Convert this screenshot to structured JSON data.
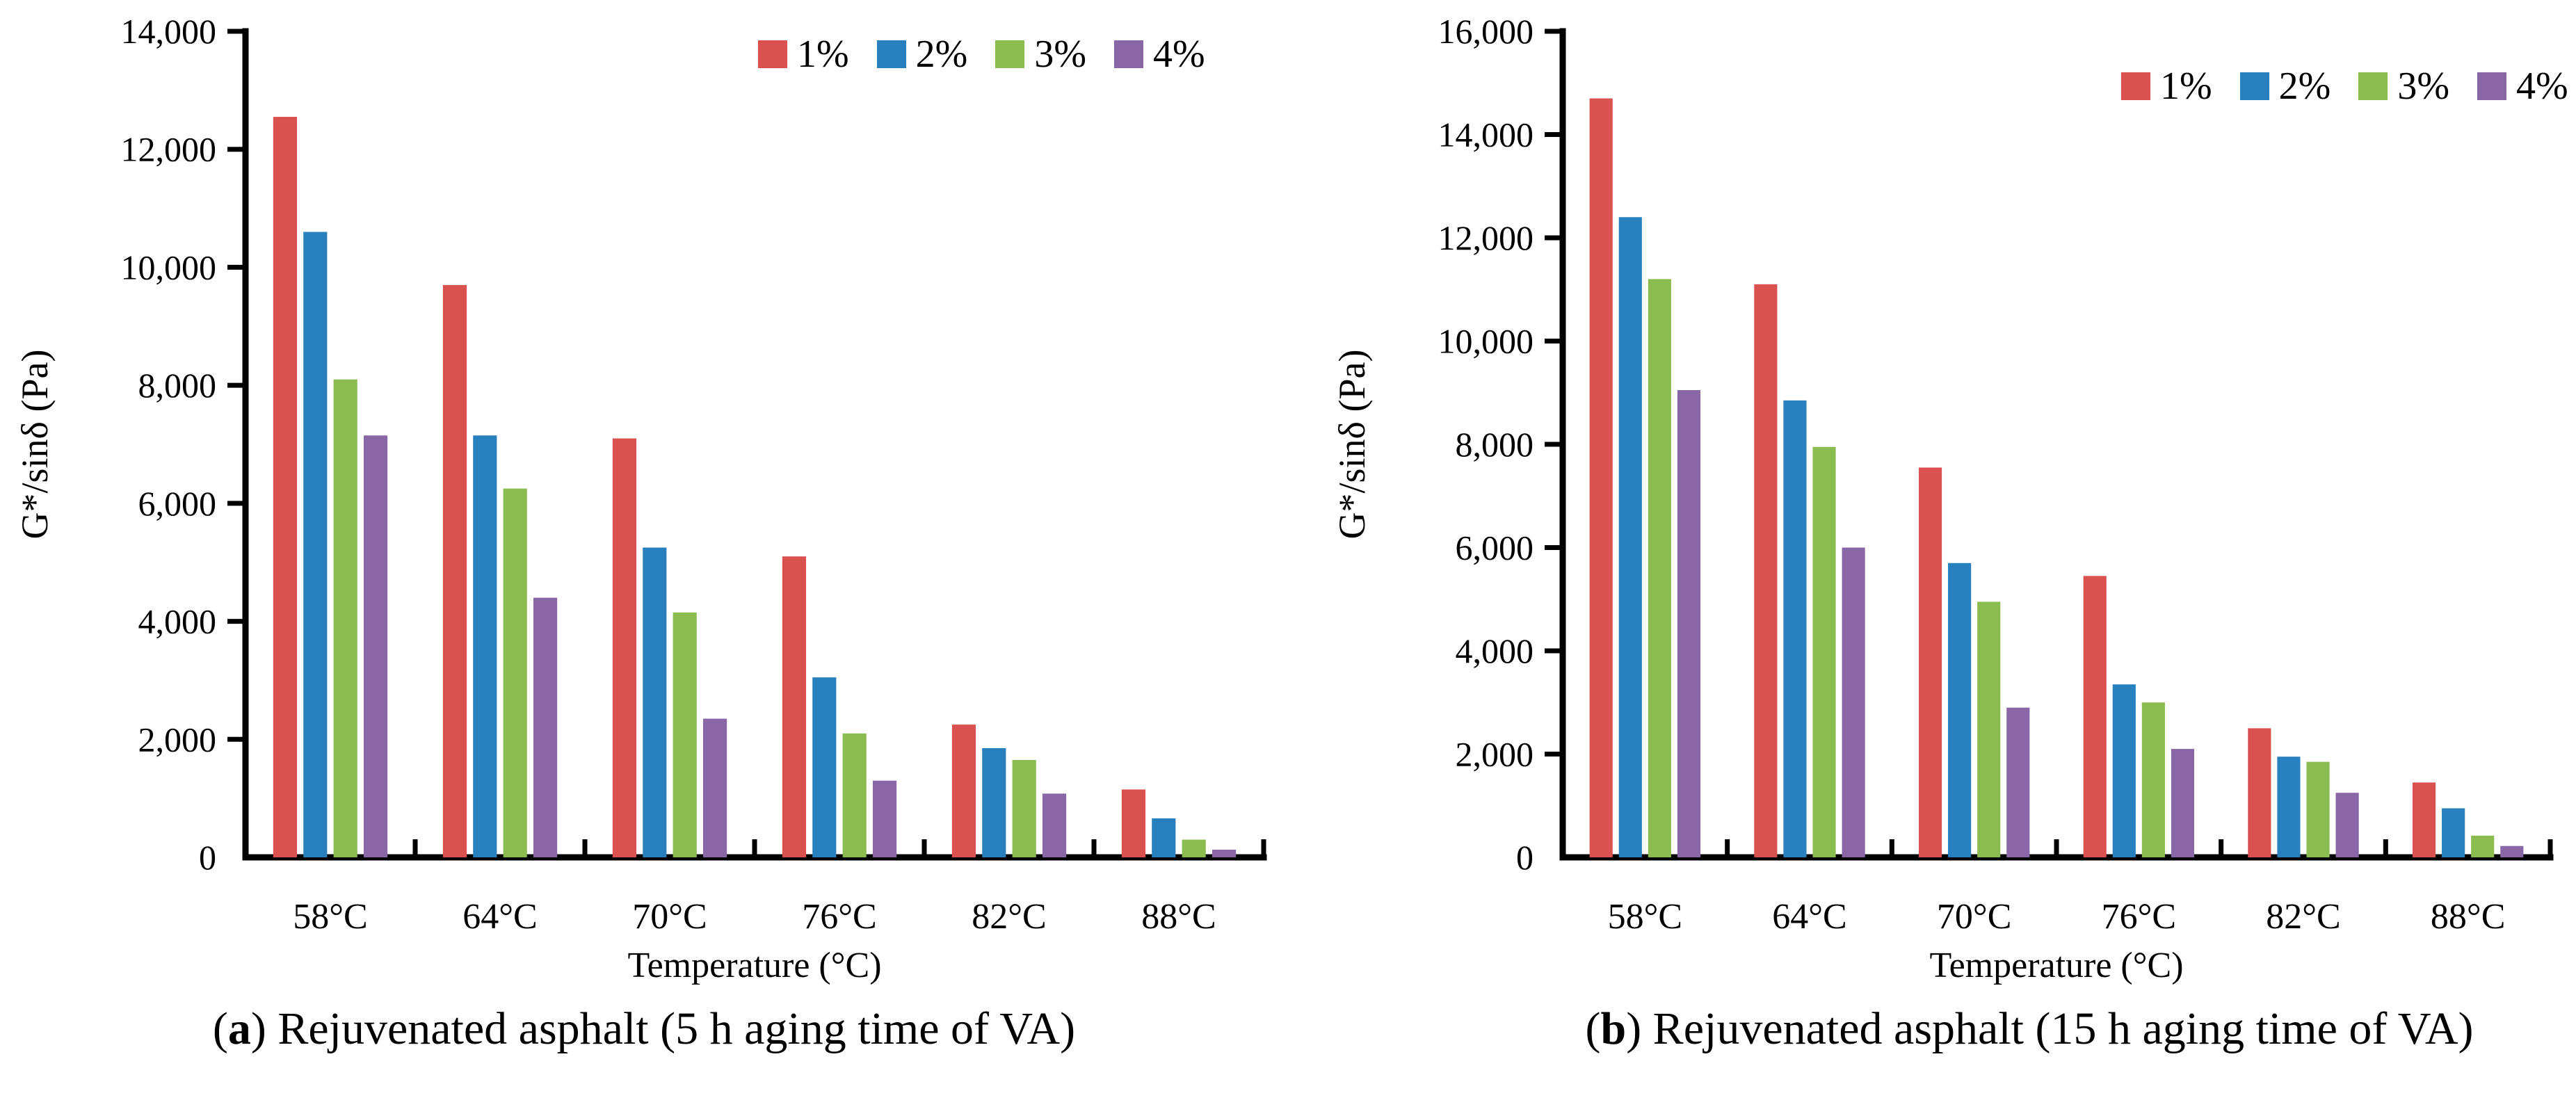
{
  "figure": {
    "background": "#ffffff",
    "text_color": "#000000"
  },
  "chart_data": [
    {
      "type": "bar",
      "panel": "a",
      "caption": {
        "open": "(",
        "letter": "a",
        "close": ")",
        "body": " Rejuvenated asphalt (5 h aging time of VA)"
      },
      "xlabel": "Temperature (°C)",
      "ylabel": "G*/sinδ (Pa)",
      "categories": [
        "58°C",
        "64°C",
        "70°C",
        "76°C",
        "82°C",
        "88°C"
      ],
      "series": [
        {
          "name": "1%",
          "color": "#D95250",
          "values": [
            12550,
            9700,
            7100,
            5100,
            2250,
            1150
          ]
        },
        {
          "name": "2%",
          "color": "#2880BE",
          "values": [
            10600,
            7150,
            5250,
            3050,
            1850,
            660
          ]
        },
        {
          "name": "3%",
          "color": "#8BBC4F",
          "values": [
            8100,
            6250,
            4150,
            2100,
            1650,
            300
          ]
        },
        {
          "name": "4%",
          "color": "#8967A7",
          "values": [
            7150,
            4400,
            2350,
            1300,
            1080,
            130
          ]
        }
      ],
      "ylim": [
        0,
        14000
      ],
      "yticks": {
        "values": [
          0,
          2000,
          4000,
          6000,
          8000,
          10000,
          12000,
          14000
        ],
        "labels": [
          "0",
          "2,000",
          "4,000",
          "6,000",
          "8,000",
          "10,000",
          "12,000",
          "14,000"
        ]
      },
      "grid": false,
      "legend_position": "top-right"
    },
    {
      "type": "bar",
      "panel": "b",
      "caption": {
        "open": "(",
        "letter": "b",
        "close": ")",
        "body": " Rejuvenated asphalt (15 h aging time of VA)"
      },
      "xlabel": "Temperature (°C)",
      "ylabel": "G*/sinδ (Pa)",
      "categories": [
        "58°C",
        "64°C",
        "70°C",
        "76°C",
        "82°C",
        "88°C"
      ],
      "series": [
        {
          "name": "1%",
          "color": "#D95250",
          "values": [
            14700,
            11100,
            7550,
            5450,
            2500,
            1450
          ]
        },
        {
          "name": "2%",
          "color": "#2880BE",
          "values": [
            12400,
            8850,
            5700,
            3350,
            1950,
            950
          ]
        },
        {
          "name": "3%",
          "color": "#8BBC4F",
          "values": [
            11200,
            7950,
            4950,
            3000,
            1850,
            420
          ]
        },
        {
          "name": "4%",
          "color": "#8967A7",
          "values": [
            9050,
            6000,
            2900,
            2100,
            1250,
            220
          ]
        }
      ],
      "ylim": [
        0,
        16000
      ],
      "yticks": {
        "values": [
          0,
          2000,
          4000,
          6000,
          8000,
          10000,
          12000,
          14000,
          16000
        ],
        "labels": [
          "0",
          "2,000",
          "4,000",
          "6,000",
          "8,000",
          "10,000",
          "12,000",
          "14,000",
          "16,000"
        ]
      },
      "grid": false,
      "legend_position": "top-right"
    }
  ]
}
